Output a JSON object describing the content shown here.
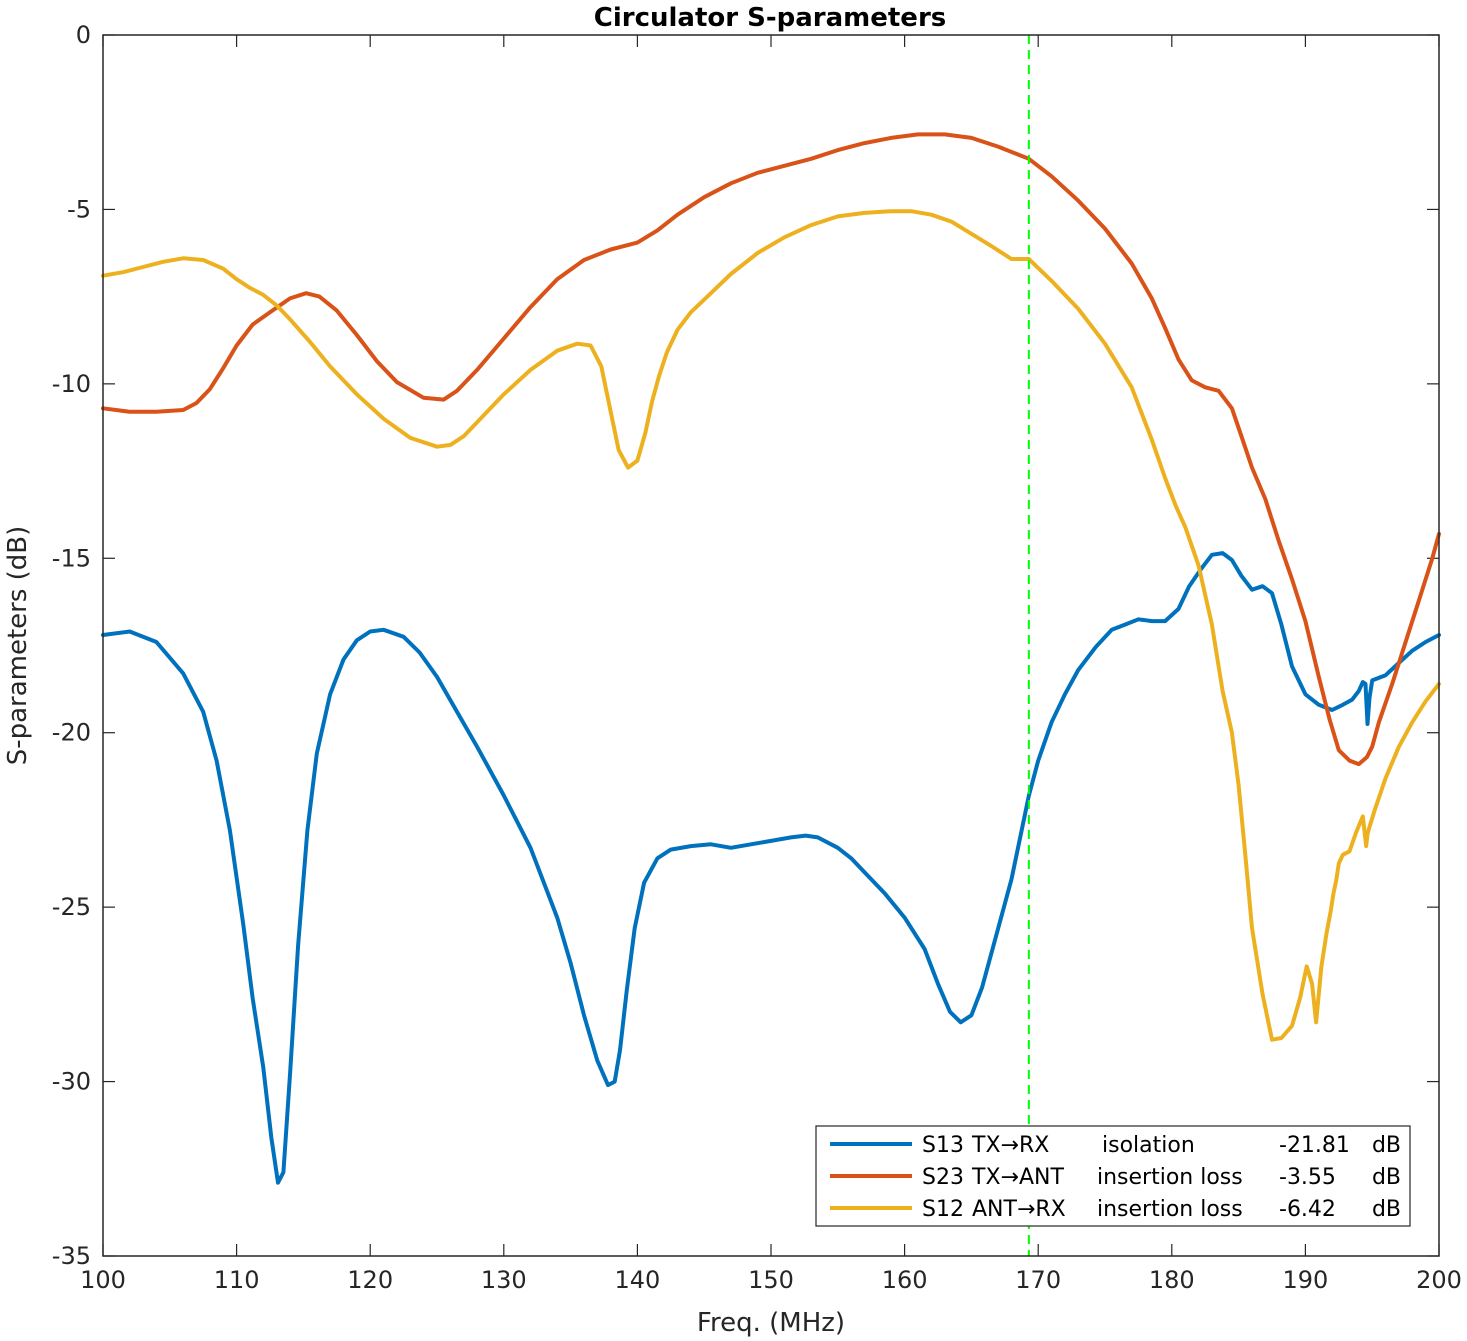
{
  "chart_data": {
    "type": "line",
    "title": "Circulator S-parameters",
    "xlabel": "Freq. (MHz)",
    "ylabel": "S-parameters (dB)",
    "xlim": [
      100,
      200
    ],
    "ylim": [
      -35,
      0
    ],
    "xticks": [
      100,
      110,
      120,
      130,
      140,
      150,
      160,
      170,
      180,
      190,
      200
    ],
    "yticks": [
      0,
      -5,
      -10,
      -15,
      -20,
      -25,
      -30,
      -35
    ],
    "ytick_labels": [
      "0",
      "-5",
      "-10",
      "-15",
      "-20",
      "-25",
      "-30",
      "-35"
    ],
    "grid": false,
    "box": true,
    "legend_location": "bottom-right",
    "marker": {
      "x": 169.3,
      "color": "#00ff00",
      "style": "dashed"
    },
    "series": [
      {
        "name": "S13",
        "legend": {
          "id": "S13",
          "path": "TX→RX",
          "desc": "isolation",
          "value": "-21.81",
          "unit": "dB"
        },
        "color": "#0072bd",
        "x": [
          100,
          102,
          104,
          106,
          107.5,
          108.5,
          109.5,
          110.5,
          111.2,
          112,
          112.6,
          113.1,
          113.5,
          114,
          114.6,
          115.3,
          116,
          117,
          118,
          119,
          120,
          121,
          122.5,
          123.7,
          125,
          126.5,
          128,
          130,
          132,
          134,
          135,
          136,
          137,
          137.8,
          138.3,
          138.7,
          139.2,
          139.8,
          140.5,
          141.5,
          142.5,
          144,
          145.5,
          147,
          148.5,
          150,
          151.5,
          152.6,
          153.5,
          155,
          156,
          157,
          158.5,
          160,
          161.5,
          162.5,
          163.4,
          164.2,
          165,
          165.8,
          166.8,
          168,
          169.3,
          170,
          171,
          172,
          173,
          174.3,
          175.5,
          176.5,
          177.5,
          178.5,
          179.5,
          180.5,
          181.3,
          182.2,
          183,
          183.8,
          184.5,
          185.2,
          186,
          186.8,
          187.5,
          188.2,
          189,
          190,
          191,
          192,
          192.8,
          193.5,
          194,
          194.3,
          194.5,
          194.65,
          194.8,
          195,
          196,
          197,
          198,
          199,
          200
        ],
        "y": [
          -17.2,
          -17.1,
          -17.4,
          -18.3,
          -19.4,
          -20.8,
          -22.8,
          -25.5,
          -27.6,
          -29.6,
          -31.6,
          -32.9,
          -32.6,
          -29.8,
          -26.1,
          -22.8,
          -20.6,
          -18.9,
          -17.9,
          -17.35,
          -17.1,
          -17.05,
          -17.25,
          -17.7,
          -18.4,
          -19.4,
          -20.4,
          -21.8,
          -23.3,
          -25.3,
          -26.6,
          -28.1,
          -29.4,
          -30.1,
          -30.0,
          -29.1,
          -27.4,
          -25.6,
          -24.3,
          -23.6,
          -23.35,
          -23.25,
          -23.2,
          -23.3,
          -23.2,
          -23.1,
          -23.0,
          -22.95,
          -23.0,
          -23.3,
          -23.6,
          -24.0,
          -24.6,
          -25.3,
          -26.2,
          -27.2,
          -28.0,
          -28.3,
          -28.1,
          -27.3,
          -25.9,
          -24.2,
          -21.81,
          -20.8,
          -19.7,
          -18.9,
          -18.2,
          -17.55,
          -17.05,
          -16.9,
          -16.75,
          -16.8,
          -16.8,
          -16.45,
          -15.8,
          -15.3,
          -14.9,
          -14.85,
          -15.05,
          -15.5,
          -15.9,
          -15.8,
          -16.0,
          -16.9,
          -18.1,
          -18.9,
          -19.2,
          -19.35,
          -19.2,
          -19.05,
          -18.8,
          -18.55,
          -18.6,
          -19.75,
          -19.0,
          -18.5,
          -18.35,
          -18.0,
          -17.65,
          -17.4,
          -17.2
        ]
      },
      {
        "name": "S23",
        "legend": {
          "id": "S23",
          "path": "TX→ANT",
          "desc": "insertion loss",
          "value": "-3.55",
          "unit": "dB"
        },
        "color": "#d95319",
        "x": [
          100,
          102,
          104,
          106,
          107,
          108,
          109,
          110,
          111.2,
          112.5,
          114,
          115.2,
          116.2,
          117.5,
          119,
          120.5,
          122,
          124,
          125.5,
          126.5,
          128,
          130,
          132,
          134,
          136,
          138,
          139,
          140,
          141.5,
          143,
          145,
          147,
          149,
          151,
          153,
          155,
          157,
          159,
          161,
          163,
          165,
          167,
          169.3,
          171,
          173,
          175,
          177,
          178.5,
          179.5,
          180.5,
          181.5,
          182.5,
          183.5,
          184.5,
          185.3,
          186,
          187,
          188,
          189,
          190,
          191,
          191.8,
          192.5,
          193.3,
          194,
          194.6,
          195,
          195.5,
          196.5,
          197.5,
          198.5,
          199.5,
          200
        ],
        "y": [
          -10.7,
          -10.8,
          -10.8,
          -10.75,
          -10.55,
          -10.15,
          -9.55,
          -8.9,
          -8.3,
          -7.95,
          -7.55,
          -7.4,
          -7.5,
          -7.9,
          -8.6,
          -9.35,
          -9.95,
          -10.4,
          -10.45,
          -10.2,
          -9.6,
          -8.7,
          -7.8,
          -7.0,
          -6.45,
          -6.15,
          -6.05,
          -5.95,
          -5.6,
          -5.15,
          -4.65,
          -4.25,
          -3.95,
          -3.75,
          -3.55,
          -3.3,
          -3.1,
          -2.95,
          -2.85,
          -2.85,
          -2.95,
          -3.2,
          -3.55,
          -4.05,
          -4.75,
          -5.55,
          -6.55,
          -7.55,
          -8.4,
          -9.3,
          -9.9,
          -10.1,
          -10.2,
          -10.7,
          -11.6,
          -12.4,
          -13.3,
          -14.5,
          -15.6,
          -16.8,
          -18.4,
          -19.6,
          -20.5,
          -20.8,
          -20.9,
          -20.7,
          -20.4,
          -19.7,
          -18.6,
          -17.4,
          -16.2,
          -15.0,
          -14.3
        ]
      },
      {
        "name": "S12",
        "legend": {
          "id": "S12",
          "path": "ANT→RX",
          "desc": "insertion loss",
          "value": "-6.42",
          "unit": "dB"
        },
        "color": "#edb120",
        "x": [
          100,
          101.5,
          103,
          104.5,
          106,
          107.5,
          109,
          110,
          111,
          112,
          113,
          114,
          115.5,
          117,
          119,
          121,
          123,
          125,
          126,
          127,
          128,
          130,
          132,
          134,
          135.5,
          136.5,
          137.3,
          138,
          138.6,
          139.3,
          140,
          140.6,
          141.1,
          141.6,
          142.2,
          143,
          144,
          145.5,
          147,
          149,
          151,
          153,
          155,
          157,
          159,
          160.5,
          162,
          163.5,
          165,
          166.5,
          168,
          169.3,
          171,
          173,
          175,
          177,
          178.5,
          179.5,
          180.3,
          181,
          182,
          183,
          183.8,
          184.5,
          185,
          185.5,
          186,
          186.8,
          187.5,
          188.2,
          189,
          189.6,
          190.1,
          190.5,
          190.8,
          191.2,
          191.6,
          191.9,
          192.1,
          192.3,
          192.5,
          192.8,
          193.3,
          193.8,
          194.3,
          194.55,
          194.65,
          194.8,
          195.2,
          196,
          197,
          198,
          199,
          200
        ],
        "y": [
          -6.9,
          -6.8,
          -6.65,
          -6.5,
          -6.4,
          -6.45,
          -6.7,
          -7.0,
          -7.25,
          -7.45,
          -7.75,
          -8.15,
          -8.8,
          -9.5,
          -10.3,
          -11.0,
          -11.55,
          -11.8,
          -11.75,
          -11.5,
          -11.1,
          -10.3,
          -9.6,
          -9.05,
          -8.85,
          -8.9,
          -9.5,
          -10.8,
          -11.9,
          -12.4,
          -12.2,
          -11.4,
          -10.5,
          -9.8,
          -9.1,
          -8.45,
          -7.95,
          -7.4,
          -6.85,
          -6.25,
          -5.8,
          -5.45,
          -5.2,
          -5.1,
          -5.05,
          -5.05,
          -5.15,
          -5.35,
          -5.7,
          -6.05,
          -6.42,
          -6.42,
          -7.05,
          -7.85,
          -8.85,
          -10.1,
          -11.6,
          -12.7,
          -13.5,
          -14.1,
          -15.2,
          -16.9,
          -18.8,
          -20.0,
          -21.5,
          -23.5,
          -25.6,
          -27.5,
          -28.8,
          -28.75,
          -28.4,
          -27.6,
          -26.7,
          -27.2,
          -28.3,
          -26.7,
          -25.7,
          -25.1,
          -24.6,
          -24.25,
          -23.75,
          -23.5,
          -23.4,
          -22.85,
          -22.4,
          -23.25,
          -22.9,
          -22.7,
          -22.2,
          -21.3,
          -20.4,
          -19.7,
          -19.1,
          -18.6
        ]
      }
    ]
  }
}
